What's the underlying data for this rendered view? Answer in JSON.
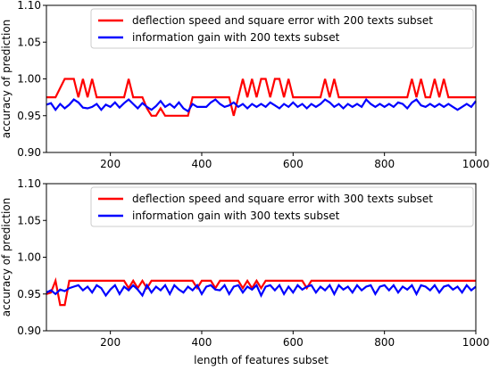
{
  "chart_data": [
    {
      "type": "line",
      "xlabel": "",
      "ylabel": "accuracy of prediction",
      "xlim": [
        60,
        1000
      ],
      "ylim": [
        0.9,
        1.1
      ],
      "xticks": [
        200,
        400,
        600,
        800,
        1000
      ],
      "yticks": [
        0.9,
        0.95,
        1.0,
        1.05,
        1.1
      ],
      "ytick_labels": [
        "0.90",
        "0.95",
        "1.00",
        "1.05",
        "1.10"
      ],
      "grid": false,
      "legend_position": "top-right",
      "series": [
        {
          "name": "deflection speed and square error with 200 texts subset",
          "color": "#ff0000",
          "x": [
            60,
            80,
            100,
            120,
            130,
            140,
            150,
            160,
            170,
            180,
            200,
            220,
            230,
            240,
            250,
            260,
            270,
            280,
            290,
            300,
            310,
            320,
            330,
            340,
            350,
            360,
            370,
            380,
            390,
            400,
            420,
            440,
            450,
            460,
            470,
            480,
            490,
            500,
            510,
            520,
            530,
            540,
            550,
            560,
            570,
            580,
            590,
            600,
            610,
            620,
            630,
            640,
            650,
            660,
            670,
            680,
            690,
            700,
            720,
            740,
            760,
            780,
            800,
            820,
            840,
            850,
            860,
            870,
            880,
            890,
            900,
            910,
            920,
            930,
            940,
            960,
            980,
            1000
          ],
          "y": [
            0.975,
            0.975,
            1.0,
            1.0,
            0.975,
            1.0,
            0.975,
            1.0,
            0.975,
            0.975,
            0.975,
            0.975,
            0.975,
            1.0,
            0.975,
            0.975,
            0.975,
            0.96,
            0.95,
            0.95,
            0.96,
            0.95,
            0.95,
            0.95,
            0.95,
            0.95,
            0.95,
            0.975,
            0.975,
            0.975,
            0.975,
            0.975,
            0.975,
            0.975,
            0.95,
            0.975,
            1.0,
            0.975,
            1.0,
            0.975,
            1.0,
            1.0,
            0.975,
            1.0,
            1.0,
            0.975,
            1.0,
            0.975,
            0.975,
            0.975,
            0.975,
            0.975,
            0.975,
            0.975,
            1.0,
            0.975,
            1.0,
            0.975,
            0.975,
            0.975,
            0.975,
            0.975,
            0.975,
            0.975,
            0.975,
            0.975,
            1.0,
            0.975,
            1.0,
            0.975,
            0.975,
            1.0,
            0.975,
            1.0,
            0.975,
            0.975,
            0.975,
            0.975
          ]
        },
        {
          "name": "information gain with 200 texts subset",
          "color": "#0000ff",
          "x": [
            60,
            70,
            80,
            90,
            100,
            110,
            120,
            130,
            140,
            150,
            160,
            170,
            180,
            190,
            200,
            210,
            220,
            230,
            240,
            250,
            260,
            270,
            280,
            290,
            300,
            310,
            320,
            330,
            340,
            350,
            360,
            370,
            380,
            390,
            400,
            410,
            420,
            430,
            440,
            450,
            460,
            470,
            480,
            490,
            500,
            510,
            520,
            530,
            540,
            550,
            560,
            570,
            580,
            590,
            600,
            610,
            620,
            630,
            640,
            650,
            660,
            670,
            680,
            690,
            700,
            710,
            720,
            730,
            740,
            750,
            760,
            770,
            780,
            790,
            800,
            810,
            820,
            830,
            840,
            850,
            860,
            870,
            880,
            890,
            900,
            910,
            920,
            930,
            940,
            950,
            960,
            970,
            980,
            990,
            1000
          ],
          "y": [
            0.965,
            0.967,
            0.958,
            0.966,
            0.96,
            0.965,
            0.972,
            0.968,
            0.961,
            0.96,
            0.962,
            0.966,
            0.958,
            0.965,
            0.962,
            0.968,
            0.961,
            0.967,
            0.972,
            0.966,
            0.96,
            0.967,
            0.962,
            0.958,
            0.963,
            0.97,
            0.962,
            0.966,
            0.961,
            0.968,
            0.96,
            0.956,
            0.966,
            0.962,
            0.962,
            0.962,
            0.968,
            0.972,
            0.966,
            0.962,
            0.964,
            0.968,
            0.962,
            0.966,
            0.96,
            0.966,
            0.962,
            0.966,
            0.962,
            0.968,
            0.964,
            0.96,
            0.966,
            0.962,
            0.968,
            0.962,
            0.966,
            0.96,
            0.966,
            0.962,
            0.966,
            0.972,
            0.968,
            0.962,
            0.966,
            0.96,
            0.966,
            0.962,
            0.966,
            0.962,
            0.972,
            0.966,
            0.962,
            0.966,
            0.962,
            0.966,
            0.962,
            0.968,
            0.966,
            0.96,
            0.968,
            0.972,
            0.964,
            0.962,
            0.966,
            0.962,
            0.966,
            0.962,
            0.966,
            0.962,
            0.958,
            0.962,
            0.966,
            0.962,
            0.97
          ]
        }
      ]
    },
    {
      "type": "line",
      "xlabel": "length of features subset",
      "ylabel": "accuracy of prediction",
      "xlim": [
        60,
        1000
      ],
      "ylim": [
        0.9,
        1.1
      ],
      "xticks": [
        200,
        400,
        600,
        800,
        1000
      ],
      "yticks": [
        0.9,
        0.95,
        1.0,
        1.05,
        1.1
      ],
      "ytick_labels": [
        "0.90",
        "0.95",
        "1.00",
        "1.05",
        "1.10"
      ],
      "grid": false,
      "legend_position": "top-right",
      "series": [
        {
          "name": "deflection speed and square error with 300 texts subset",
          "color": "#ff0000",
          "x": [
            60,
            70,
            80,
            90,
            100,
            110,
            120,
            130,
            140,
            150,
            160,
            170,
            180,
            190,
            200,
            210,
            220,
            230,
            240,
            250,
            260,
            270,
            280,
            290,
            300,
            310,
            320,
            330,
            340,
            350,
            360,
            370,
            380,
            390,
            400,
            410,
            420,
            430,
            440,
            450,
            460,
            470,
            480,
            490,
            500,
            510,
            520,
            530,
            540,
            550,
            560,
            570,
            580,
            590,
            600,
            610,
            620,
            630,
            640,
            650,
            660,
            670,
            680,
            690,
            700,
            710,
            720,
            730,
            740,
            750,
            760,
            770,
            780,
            790,
            800,
            810,
            820,
            830,
            840,
            850,
            860,
            870,
            880,
            890,
            900,
            910,
            920,
            930,
            940,
            950,
            960,
            970,
            980,
            990,
            1000
          ],
          "y": [
            0.95,
            0.952,
            0.968,
            0.935,
            0.935,
            0.968,
            0.968,
            0.968,
            0.968,
            0.968,
            0.968,
            0.968,
            0.968,
            0.968,
            0.968,
            0.968,
            0.968,
            0.968,
            0.958,
            0.968,
            0.958,
            0.968,
            0.958,
            0.968,
            0.968,
            0.968,
            0.968,
            0.968,
            0.968,
            0.968,
            0.968,
            0.968,
            0.968,
            0.958,
            0.968,
            0.968,
            0.968,
            0.958,
            0.968,
            0.968,
            0.968,
            0.968,
            0.968,
            0.958,
            0.968,
            0.958,
            0.968,
            0.958,
            0.968,
            0.968,
            0.968,
            0.968,
            0.968,
            0.968,
            0.968,
            0.968,
            0.968,
            0.958,
            0.968,
            0.968,
            0.968,
            0.968,
            0.968,
            0.968,
            0.968,
            0.968,
            0.968,
            0.968,
            0.968,
            0.968,
            0.968,
            0.968,
            0.968,
            0.968,
            0.968,
            0.968,
            0.968,
            0.968,
            0.968,
            0.968,
            0.968,
            0.968,
            0.968,
            0.968,
            0.968,
            0.968,
            0.968,
            0.968,
            0.968,
            0.968,
            0.968,
            0.968,
            0.968,
            0.968,
            0.968
          ]
        },
        {
          "name": "information gain with 300 texts subset",
          "color": "#0000ff",
          "x": [
            60,
            70,
            80,
            90,
            100,
            110,
            120,
            130,
            140,
            150,
            160,
            170,
            180,
            190,
            200,
            210,
            220,
            230,
            240,
            250,
            260,
            270,
            280,
            290,
            300,
            310,
            320,
            330,
            340,
            350,
            360,
            370,
            380,
            390,
            400,
            410,
            420,
            430,
            440,
            450,
            460,
            470,
            480,
            490,
            500,
            510,
            520,
            530,
            540,
            550,
            560,
            570,
            580,
            590,
            600,
            610,
            620,
            630,
            640,
            650,
            660,
            670,
            680,
            690,
            700,
            710,
            720,
            730,
            740,
            750,
            760,
            770,
            780,
            790,
            800,
            810,
            820,
            830,
            840,
            850,
            860,
            870,
            880,
            890,
            900,
            910,
            920,
            930,
            940,
            950,
            960,
            970,
            980,
            990,
            1000
          ],
          "y": [
            0.952,
            0.955,
            0.95,
            0.956,
            0.954,
            0.958,
            0.96,
            0.962,
            0.955,
            0.96,
            0.952,
            0.962,
            0.958,
            0.948,
            0.956,
            0.962,
            0.95,
            0.96,
            0.955,
            0.962,
            0.956,
            0.948,
            0.962,
            0.952,
            0.96,
            0.955,
            0.962,
            0.95,
            0.962,
            0.956,
            0.952,
            0.96,
            0.955,
            0.962,
            0.95,
            0.96,
            0.962,
            0.956,
            0.955,
            0.962,
            0.95,
            0.96,
            0.962,
            0.952,
            0.96,
            0.956,
            0.962,
            0.948,
            0.96,
            0.962,
            0.955,
            0.962,
            0.95,
            0.96,
            0.952,
            0.962,
            0.956,
            0.96,
            0.962,
            0.952,
            0.96,
            0.955,
            0.962,
            0.95,
            0.962,
            0.956,
            0.96,
            0.952,
            0.962,
            0.955,
            0.96,
            0.962,
            0.95,
            0.96,
            0.962,
            0.955,
            0.962,
            0.952,
            0.96,
            0.956,
            0.962,
            0.95,
            0.962,
            0.96,
            0.955,
            0.962,
            0.952,
            0.96,
            0.962,
            0.956,
            0.96,
            0.952,
            0.962,
            0.955,
            0.96
          ]
        }
      ]
    }
  ]
}
